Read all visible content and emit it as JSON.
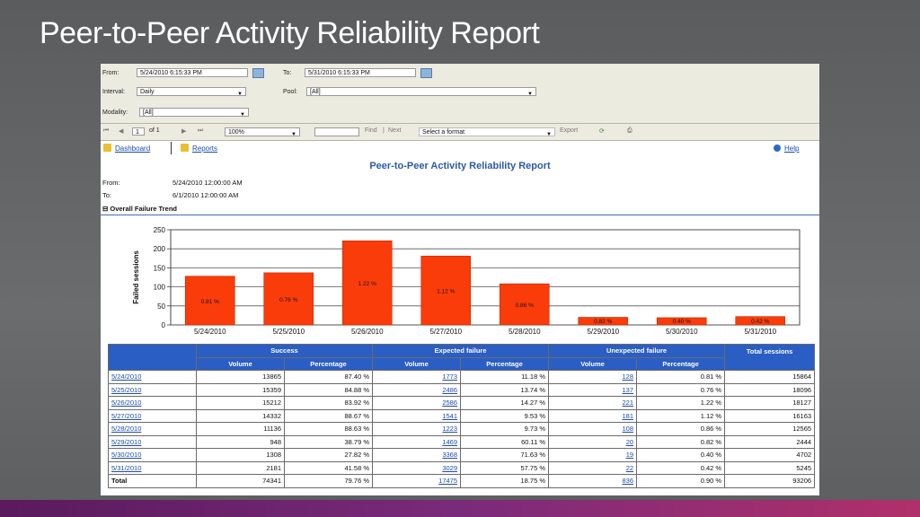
{
  "slide": {
    "title": "Peer-to-Peer Activity Reliability Report"
  },
  "params": {
    "from_label": "From:",
    "from_value": "5/24/2010 6:15:33 PM",
    "to_label": "To:",
    "to_value": "5/31/2010 6:15:33 PM",
    "interval_label": "Interval:",
    "interval_value": "Daily",
    "pool_label": "Pool:",
    "pool_value": "[All]",
    "modality_label": "Modality:",
    "modality_value": "[All]"
  },
  "toolbar": {
    "page": "1",
    "of_pages": "of 1",
    "zoom": "100%",
    "find": "Find",
    "sep": "|",
    "next": "Next",
    "format": "Select a format",
    "export": "Export"
  },
  "nav": {
    "dashboard": "Dashboard",
    "reports": "Reports",
    "help": "Help"
  },
  "report": {
    "title": "Peer-to-Peer Activity Reliability Report",
    "from_label": "From:",
    "from_value": "5/24/2010 12:00:00 AM",
    "to_label": "To:",
    "to_value": "6/1/2010 12:00:00 AM",
    "section": "⊟ Overall Failure Trend"
  },
  "chart_data": {
    "type": "bar",
    "ylabel": "Failed sessions",
    "ylim": [
      0,
      250
    ],
    "yticks": [
      "0",
      "50",
      "100",
      "150",
      "200",
      "250"
    ],
    "categories": [
      "5/24/2010",
      "5/25/2010",
      "5/26/2010",
      "5/27/2010",
      "5/28/2010",
      "5/29/2010",
      "5/30/2010",
      "5/31/2010"
    ],
    "values": [
      128,
      137,
      221,
      181,
      108,
      20,
      19,
      22
    ],
    "labels": [
      "0.81 %",
      "0.76 %",
      "1.22 %",
      "1.12 %",
      "0.86 %",
      "0.82 %",
      "0.40 %",
      "0.42 %"
    ],
    "bar_color": "#fa3c0a",
    "grid": true
  },
  "table": {
    "headers": {
      "success": "Success",
      "expected": "Expected failure",
      "unexpected": "Unexpected failure",
      "total": "Total sessions",
      "volume": "Volume",
      "percentage": "Percentage"
    },
    "rows": [
      [
        "5/24/2010",
        "13865",
        "87.40 %",
        "1773",
        "11.18 %",
        "128",
        "0.81 %",
        "15864"
      ],
      [
        "5/25/2010",
        "15359",
        "84.88 %",
        "2486",
        "13.74 %",
        "137",
        "0.76 %",
        "18096"
      ],
      [
        "5/26/2010",
        "15212",
        "83.92 %",
        "2586",
        "14.27 %",
        "221",
        "1.22 %",
        "18127"
      ],
      [
        "5/27/2010",
        "14332",
        "88.67 %",
        "1541",
        "9.53 %",
        "181",
        "1.12 %",
        "16163"
      ],
      [
        "5/28/2010",
        "11136",
        "88.63 %",
        "1223",
        "9.73 %",
        "108",
        "0.86 %",
        "12565"
      ],
      [
        "5/29/2010",
        "948",
        "38.79 %",
        "1469",
        "60.11 %",
        "20",
        "0.82 %",
        "2444"
      ],
      [
        "5/30/2010",
        "1308",
        "27.82 %",
        "3368",
        "71.63 %",
        "19",
        "0.40 %",
        "4702"
      ],
      [
        "5/31/2010",
        "2181",
        "41.58 %",
        "3029",
        "57.75 %",
        "22",
        "0.42 %",
        "5245"
      ]
    ],
    "total_row": [
      "Total",
      "74341",
      "79.76 %",
      "17475",
      "18.75 %",
      "836",
      "0.90 %",
      "93206"
    ]
  }
}
